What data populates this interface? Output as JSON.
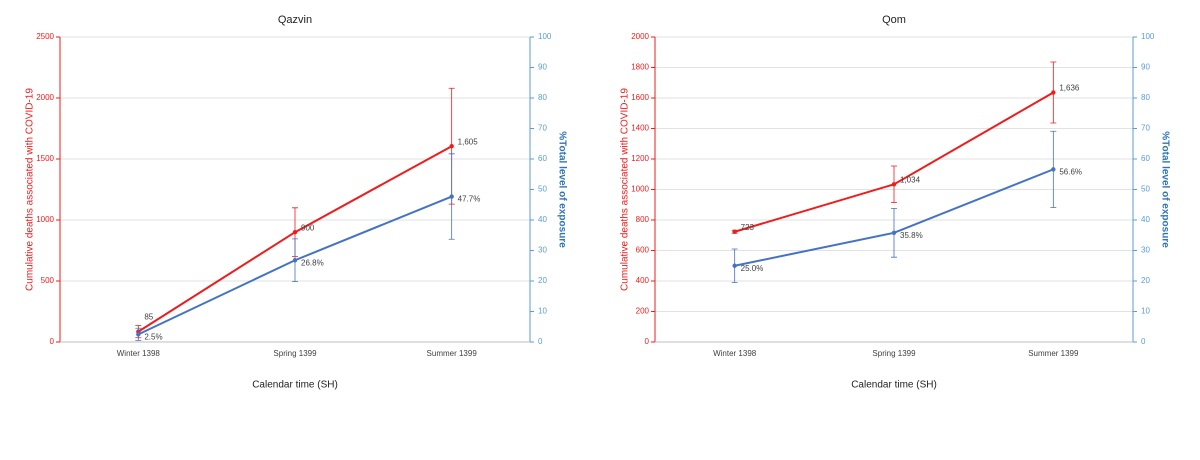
{
  "chart_data": [
    {
      "type": "line",
      "title": "Qazvin",
      "categories": [
        "Winter 1398",
        "Spring 1399",
        "Summer 1399"
      ],
      "x_label": "Calendar time (SH)",
      "y_label": "Cumulative deaths associated with COVID-19",
      "y2_label": "%Total level of exposure",
      "ylim": [
        0,
        2500
      ],
      "yticks": [
        0,
        500,
        1000,
        1500,
        2000,
        2500
      ],
      "y2lim": [
        0,
        100
      ],
      "y2ticks": [
        0,
        10,
        20,
        30,
        40,
        50,
        60,
        70,
        80,
        90,
        100
      ],
      "grid": true,
      "series": [
        {
          "color": "#ee1c1c",
          "values": [
            85,
            900,
            1605
          ],
          "errors": [
            50,
            200,
            475
          ],
          "value_labels": [
            "85",
            "900",
            "1,605"
          ]
        },
        {
          "color": "#4472c4",
          "axis": "y2",
          "values": [
            2.5,
            26.8,
            47.7
          ],
          "errors": [
            2,
            7,
            14
          ],
          "value_labels": [
            "2.5%",
            "26.8%",
            "47.7%"
          ]
        }
      ]
    },
    {
      "type": "line",
      "title": "Qom",
      "categories": [
        "Winter 1398",
        "Spring 1399",
        "Summer 1399"
      ],
      "x_label": "Calendar time (SH)",
      "y_label": "Cumulative deaths associated with COVID-19",
      "y2_label": "%Total level of exposure",
      "ylim": [
        0,
        2000
      ],
      "yticks": [
        0,
        200,
        400,
        600,
        800,
        1000,
        1200,
        1400,
        1600,
        1800,
        2000
      ],
      "y2lim": [
        0,
        100
      ],
      "y2ticks": [
        0,
        10,
        20,
        30,
        40,
        50,
        60,
        70,
        80,
        90,
        100
      ],
      "grid": true,
      "series": [
        {
          "color": "#ee1c1c",
          "values": [
            723,
            1034,
            1636
          ],
          "errors": [
            10,
            120,
            200
          ],
          "value_labels": [
            "723",
            "1,034",
            "1,636"
          ]
        },
        {
          "color": "#4472c4",
          "axis": "y2",
          "values": [
            25.0,
            35.8,
            56.6
          ],
          "errors": [
            5.5,
            8,
            12.5
          ],
          "value_labels": [
            "25.0%",
            "35.8%",
            "56.6%"
          ]
        }
      ]
    }
  ]
}
